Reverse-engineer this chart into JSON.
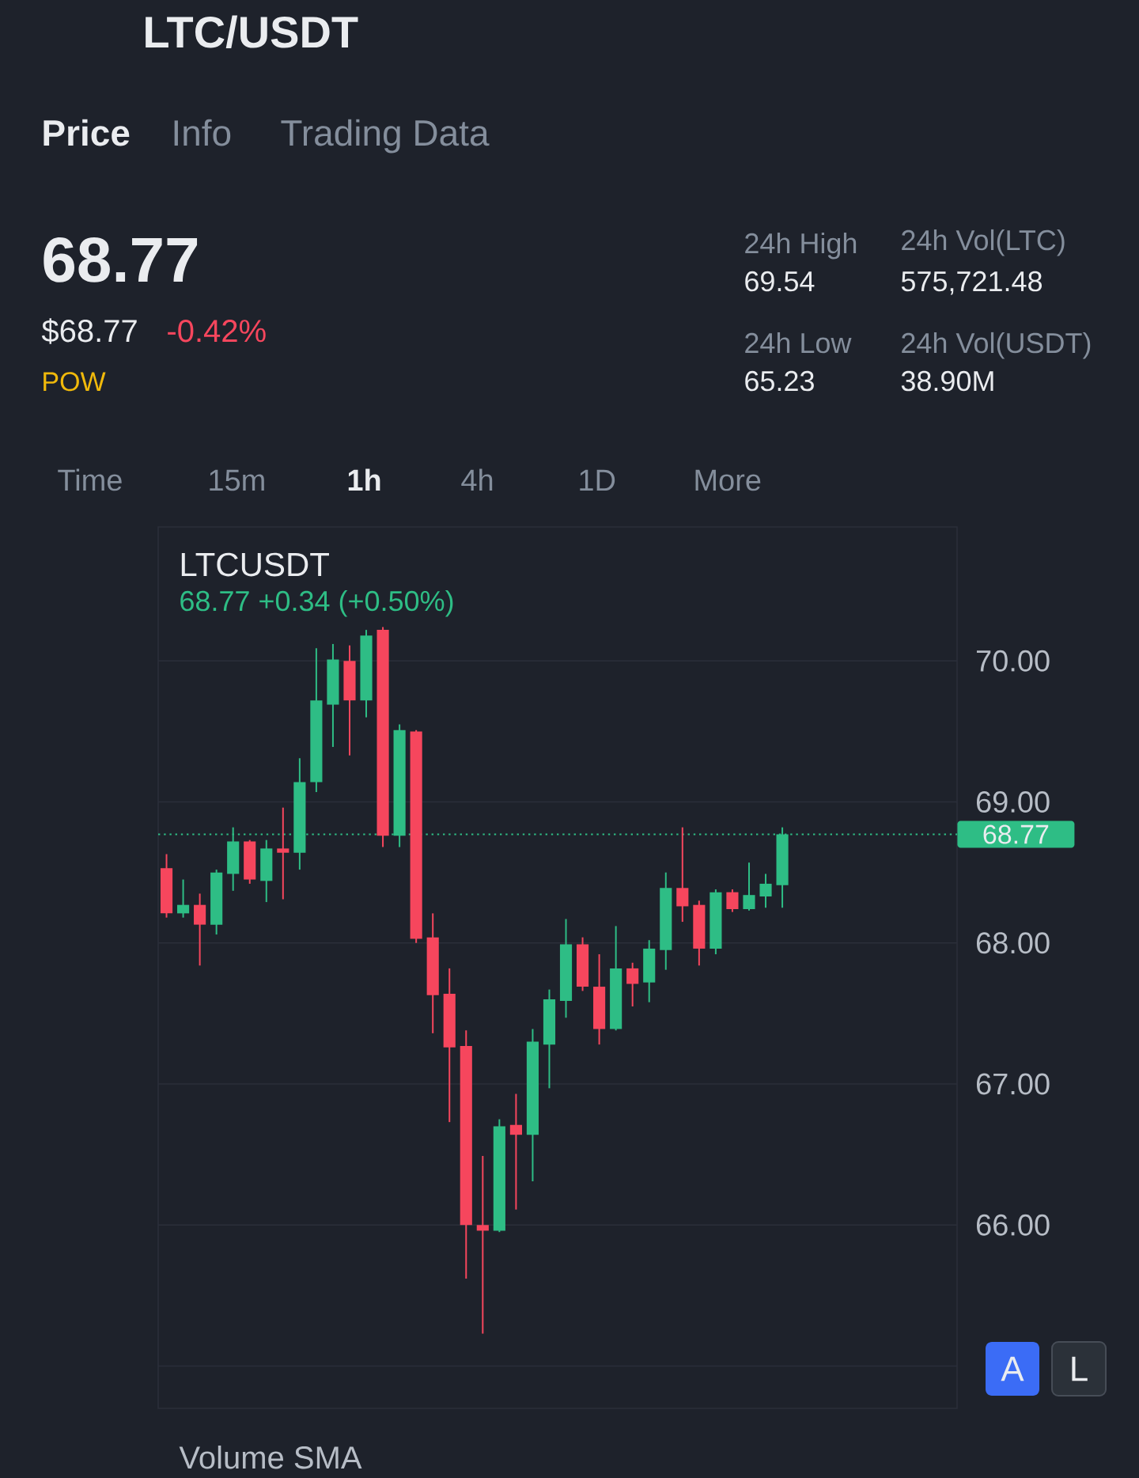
{
  "chart_data": {
    "type": "candlestick",
    "title": "LTCUSDT",
    "subtitle": "68.77 +0.34 (+0.50%)",
    "categories": [
      null,
      null,
      null,
      null,
      null,
      null,
      null,
      null,
      null,
      null,
      null,
      null,
      null,
      null,
      null,
      null,
      null,
      null,
      null,
      null,
      null,
      null,
      null,
      null,
      null,
      null,
      null,
      null,
      null,
      null,
      null,
      null,
      null,
      null,
      null,
      null,
      null,
      null,
      null,
      null,
      null,
      null,
      null,
      null,
      null,
      null,
      null,
      null
    ],
    "ohlc": [
      [
        68.53,
        68.63,
        68.18,
        68.21
      ],
      [
        68.21,
        68.45,
        68.18,
        68.27
      ],
      [
        68.27,
        68.35,
        67.84,
        68.13
      ],
      [
        68.13,
        68.52,
        68.06,
        68.5
      ],
      [
        68.49,
        68.82,
        68.37,
        68.72
      ],
      [
        68.72,
        68.73,
        68.42,
        68.45
      ],
      [
        68.44,
        68.73,
        68.29,
        68.67
      ],
      [
        68.67,
        68.96,
        68.31,
        68.64
      ],
      [
        68.64,
        69.31,
        68.52,
        69.14
      ],
      [
        69.14,
        70.09,
        69.07,
        69.72
      ],
      [
        69.69,
        70.12,
        69.39,
        70.01
      ],
      [
        70.0,
        70.11,
        69.33,
        69.72
      ],
      [
        69.72,
        70.22,
        69.6,
        70.18
      ],
      [
        70.22,
        70.24,
        68.68,
        68.76
      ],
      [
        68.76,
        69.55,
        68.68,
        69.51
      ],
      [
        69.5,
        69.51,
        68.0,
        68.03
      ],
      [
        68.04,
        68.21,
        67.36,
        67.63
      ],
      [
        67.64,
        67.82,
        66.73,
        67.26
      ],
      [
        67.27,
        67.38,
        65.62,
        66.0
      ],
      [
        66.0,
        66.49,
        65.23,
        65.96
      ],
      [
        65.96,
        66.75,
        65.95,
        66.7
      ],
      [
        66.71,
        66.93,
        66.11,
        66.64
      ],
      [
        66.64,
        67.39,
        66.31,
        67.3
      ],
      [
        67.28,
        67.67,
        66.97,
        67.6
      ],
      [
        67.59,
        68.17,
        67.47,
        67.99
      ],
      [
        67.99,
        68.04,
        67.66,
        67.69
      ],
      [
        67.69,
        67.92,
        67.28,
        67.39
      ],
      [
        67.39,
        68.12,
        67.38,
        67.82
      ],
      [
        67.82,
        67.86,
        67.55,
        67.71
      ],
      [
        67.72,
        68.02,
        67.58,
        67.96
      ],
      [
        67.95,
        68.5,
        67.81,
        68.39
      ],
      [
        68.39,
        68.82,
        68.15,
        68.26
      ],
      [
        68.27,
        68.3,
        67.84,
        67.96
      ],
      [
        67.96,
        68.38,
        67.92,
        68.36
      ],
      [
        68.36,
        68.38,
        68.22,
        68.24
      ],
      [
        68.24,
        68.57,
        68.23,
        68.34
      ],
      [
        68.33,
        68.49,
        68.25,
        68.42
      ],
      [
        68.41,
        68.82,
        68.25,
        68.77
      ],
      null,
      null,
      null,
      null,
      null,
      null,
      null,
      null,
      null,
      null
    ],
    "colors": [
      "#f6465d",
      "#2ebd85",
      "#f6465d",
      "#2ebd85",
      "#2ebd85",
      "#f6465d",
      "#2ebd85",
      "#f6465d",
      "#2ebd85",
      "#2ebd85",
      "#2ebd85",
      "#f6465d",
      "#2ebd85",
      "#f6465d",
      "#2ebd85",
      "#f6465d",
      "#f6465d",
      "#f6465d",
      "#f6465d",
      "#f6465d",
      "#2ebd85",
      "#f6465d",
      "#2ebd85",
      "#2ebd85",
      "#2ebd85",
      "#f6465d",
      "#f6465d",
      "#2ebd85",
      "#f6465d",
      "#2ebd85",
      "#2ebd85",
      "#f6465d",
      "#f6465d",
      "#2ebd85",
      "#f6465d",
      "#2ebd85",
      "#2ebd85",
      "#2ebd85",
      null,
      null,
      null,
      null,
      null,
      null,
      null,
      null,
      null,
      null
    ],
    "ylim": [
      64.7,
      70.95
    ],
    "yticks": [
      {
        "value": 65,
        "label": null
      },
      {
        "value": 66,
        "label": "66.00"
      },
      {
        "value": 67,
        "label": "67.00"
      },
      {
        "value": 68,
        "label": "68.00"
      },
      {
        "value": 69,
        "label": "69.00"
      },
      {
        "value": 70,
        "label": "70.00"
      }
    ],
    "tick_labels": "y",
    "grid": "y",
    "ref_lines": [
      {
        "axis": "y",
        "value": 68.77,
        "label": "68.77",
        "color": "#2ebd85",
        "line_style": "dotted"
      }
    ],
    "annotations": [
      "LTC/USDT",
      "Price",
      "Info",
      "Trading Data",
      "68.77",
      "$68.77",
      "-0.42%",
      "POW",
      "24h High",
      "69.54",
      "24h Vol(LTC)",
      "575,721.48",
      "24h Low",
      "65.23",
      "24h Vol(USDT)",
      "38.90M",
      "Time",
      "15m",
      "1h",
      "4h",
      "1D",
      "More",
      "A",
      "L",
      "Volume SMA"
    ]
  }
}
